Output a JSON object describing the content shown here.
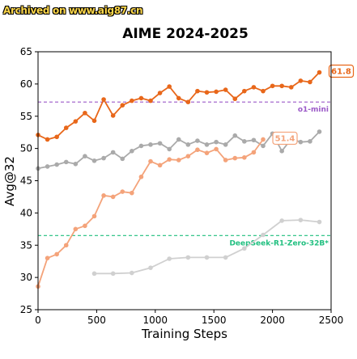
{
  "watermark": "Archived on www.aig87.cn",
  "chart_data": {
    "type": "line",
    "title": "AIME 2024-2025",
    "xlabel": "Training Steps",
    "ylabel": "Avg@32",
    "xlim": [
      0,
      2500
    ],
    "ylim": [
      25,
      65
    ],
    "xticks": [
      0,
      500,
      1000,
      1500,
      2000,
      2500
    ],
    "yticks": [
      25,
      30,
      35,
      40,
      45,
      50,
      55,
      60,
      65
    ],
    "grid": false,
    "series": [
      {
        "color": "#e8671a",
        "x": [
          0,
          80,
          160,
          240,
          320,
          400,
          480,
          560,
          640,
          720,
          800,
          880,
          960,
          1040,
          1120,
          1200,
          1280,
          1360,
          1440,
          1520,
          1600,
          1680,
          1760,
          1840,
          1920,
          2000,
          2080,
          2160,
          2240,
          2320,
          2400
        ],
        "values": [
          52.1,
          51.4,
          51.8,
          53.2,
          54.2,
          55.5,
          54.3,
          57.6,
          55.1,
          56.7,
          57.4,
          57.8,
          57.4,
          58.6,
          59.6,
          57.8,
          57.2,
          58.9,
          58.7,
          58.8,
          59.1,
          57.7,
          58.9,
          59.5,
          58.9,
          59.7,
          59.7,
          59.5,
          60.5,
          60.3,
          61.8
        ],
        "end_label": "61.8"
      },
      {
        "color": "#aaaaaa",
        "x": [
          0,
          80,
          160,
          240,
          320,
          400,
          480,
          560,
          640,
          720,
          800,
          880,
          960,
          1040,
          1120,
          1200,
          1280,
          1360,
          1440,
          1520,
          1600,
          1680,
          1760,
          1840,
          1920,
          2000,
          2080,
          2160,
          2240,
          2320,
          2400
        ],
        "values": [
          46.9,
          47.2,
          47.5,
          47.9,
          47.6,
          48.8,
          48.1,
          48.5,
          49.4,
          48.4,
          49.6,
          50.4,
          50.6,
          50.8,
          49.9,
          51.4,
          50.6,
          51.2,
          50.6,
          51.0,
          50.6,
          52.0,
          51.1,
          51.3,
          50.4,
          52.3,
          49.6,
          51.5,
          51.0,
          51.1,
          52.6
        ]
      },
      {
        "color": "#f4a37a",
        "x": [
          0,
          80,
          160,
          240,
          320,
          400,
          480,
          560,
          640,
          720,
          800,
          880,
          960,
          1040,
          1120,
          1200,
          1280,
          1360,
          1440,
          1520,
          1600,
          1680,
          1760,
          1840,
          1920
        ],
        "values": [
          28.6,
          33.0,
          33.6,
          35.0,
          37.5,
          38.0,
          39.5,
          42.7,
          42.5,
          43.3,
          43.1,
          45.6,
          48.0,
          47.4,
          48.3,
          48.2,
          48.8,
          49.8,
          49.3,
          49.9,
          48.2,
          48.5,
          48.6,
          49.4,
          51.4
        ],
        "end_label": "51.4"
      },
      {
        "color": "#d0d0d0",
        "x": [
          480,
          640,
          800,
          960,
          1120,
          1280,
          1440,
          1600,
          1760,
          1920,
          2080,
          2240,
          2400
        ],
        "values": [
          30.6,
          30.6,
          30.7,
          31.5,
          32.9,
          33.1,
          33.1,
          33.1,
          34.5,
          36.6,
          38.8,
          38.9,
          38.6
        ]
      }
    ],
    "reference_lines": [
      {
        "label": "o1-mini",
        "value": 57.2,
        "color": "#9b59c8"
      },
      {
        "label": "DeepSeek-R1-Zero-32B*",
        "value": 36.5,
        "color": "#1fbf7f"
      }
    ]
  }
}
